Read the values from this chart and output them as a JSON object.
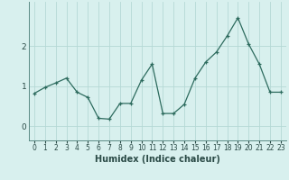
{
  "x": [
    0,
    1,
    2,
    3,
    4,
    5,
    6,
    7,
    8,
    9,
    10,
    11,
    12,
    13,
    14,
    15,
    16,
    17,
    18,
    19,
    20,
    21,
    22,
    23
  ],
  "y": [
    0.82,
    0.97,
    1.08,
    1.2,
    0.85,
    0.72,
    0.2,
    0.18,
    0.57,
    0.57,
    1.15,
    1.55,
    0.32,
    0.32,
    0.55,
    1.2,
    1.6,
    1.85,
    2.25,
    2.7,
    2.05,
    1.55,
    0.85,
    0.85
  ],
  "xlabel": "Humidex (Indice chaleur)",
  "line_color": "#2d6b5e",
  "bg_color": "#d8f0ee",
  "grid_color": "#b5d9d5",
  "xlim": [
    -0.5,
    23.5
  ],
  "ylim": [
    -0.35,
    3.1
  ],
  "yticks": [
    0,
    1,
    2
  ],
  "xtick_labels": [
    "0",
    "1",
    "2",
    "3",
    "4",
    "5",
    "6",
    "7",
    "8",
    "9",
    "10",
    "11",
    "12",
    "13",
    "14",
    "15",
    "16",
    "17",
    "18",
    "19",
    "20",
    "21",
    "22",
    "23"
  ]
}
